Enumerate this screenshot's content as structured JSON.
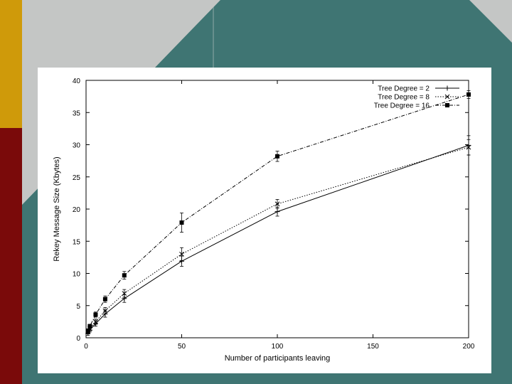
{
  "slide": {
    "colors": {
      "teal": "#3f7573",
      "gray": "#c4c6c5",
      "gold": "#cf9a0a",
      "maroon": "#7a0a0a"
    }
  },
  "chart_data": {
    "type": "line",
    "title": "",
    "xlabel": "Number of participants leaving",
    "ylabel": "Rekey Message Size (Kbytes)",
    "xlim": [
      0,
      200
    ],
    "ylim": [
      0,
      40
    ],
    "xticks": [
      0,
      50,
      100,
      150,
      200
    ],
    "yticks": [
      0,
      5,
      10,
      15,
      20,
      25,
      30,
      35,
      40
    ],
    "legend_position": "top-right",
    "grid": false,
    "error_bars": true,
    "series": [
      {
        "name": "Tree Degree = 2",
        "marker": "plus",
        "dash": "solid",
        "x": [
          1,
          2,
          5,
          10,
          20,
          50,
          100,
          200
        ],
        "y": [
          0.7,
          1.2,
          2.2,
          3.7,
          6.1,
          11.9,
          19.6,
          29.9
        ],
        "err": [
          0.3,
          0.3,
          0.4,
          0.5,
          0.6,
          0.8,
          0.7,
          1.5
        ]
      },
      {
        "name": "Tree Degree = 8",
        "marker": "cross",
        "dash": "dotted",
        "x": [
          1,
          2,
          5,
          10,
          20,
          50,
          100,
          200
        ],
        "y": [
          0.9,
          1.4,
          2.5,
          4.2,
          6.9,
          13.0,
          20.8,
          29.6
        ],
        "err": [
          0.3,
          0.3,
          0.4,
          0.5,
          0.6,
          1.0,
          0.7,
          1.2
        ]
      },
      {
        "name": "Tree Degree = 16",
        "marker": "square",
        "dash": "dashdot",
        "x": [
          1,
          2,
          5,
          10,
          20,
          50,
          100,
          200
        ],
        "y": [
          1.1,
          1.8,
          3.6,
          6.0,
          9.7,
          17.9,
          28.2,
          37.8
        ],
        "err": [
          0.3,
          0.3,
          0.4,
          0.5,
          0.6,
          1.5,
          0.8,
          0.6
        ]
      }
    ]
  }
}
